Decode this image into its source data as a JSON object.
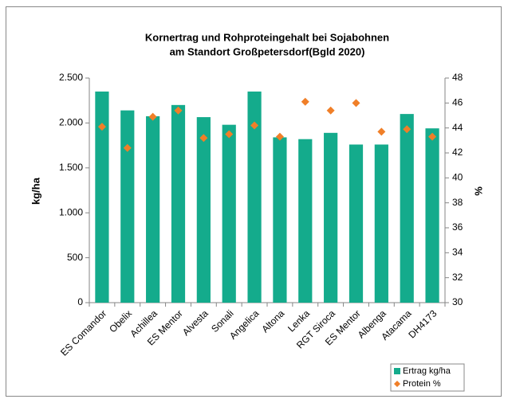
{
  "chart_data": {
    "type": "bar",
    "title": [
      "Kornertrag und Rohproteingehalt bei Sojabohnen",
      "am Standort Großpetersdorf(Bgld 2020)"
    ],
    "ylabel": "kg/ha",
    "y2label": "%",
    "categories": [
      "ES Comandor",
      "Obelix",
      "Achillea",
      "ES Mentor",
      "Alvesta",
      "Sonali",
      "Angelica",
      "Altona",
      "Lenka",
      "RGT Siroca",
      "ES Mentor",
      "Albenga",
      "Atacama",
      "DH4173"
    ],
    "series": [
      {
        "name": "Ertrag kg/ha",
        "color": "#14ab8c",
        "values": [
          2350,
          2140,
          2075,
          2200,
          2065,
          1980,
          2350,
          1840,
          1820,
          1890,
          1760,
          1760,
          2100,
          1940
        ]
      },
      {
        "name": "Protein %",
        "color": "#f07f28",
        "axis": "y2",
        "marker": "diamond",
        "values": [
          44.1,
          42.4,
          44.9,
          45.4,
          43.2,
          43.5,
          44.2,
          43.3,
          46.1,
          45.4,
          46.0,
          43.7,
          43.9,
          43.3
        ]
      }
    ],
    "ylim": [
      0,
      2500
    ],
    "yticks": [
      0,
      500,
      {
        "value": 1000,
        "label": "1.000"
      },
      {
        "value": 1500,
        "label": "1.500"
      },
      {
        "value": 2000,
        "label": "2.000"
      },
      {
        "value": 2500,
        "label": "2.500"
      }
    ],
    "y2lim": [
      30,
      48
    ],
    "y2ticks": [
      30,
      32,
      34,
      36,
      38,
      40,
      42,
      44,
      46,
      48
    ],
    "grid": false,
    "legend": "lower right"
  }
}
